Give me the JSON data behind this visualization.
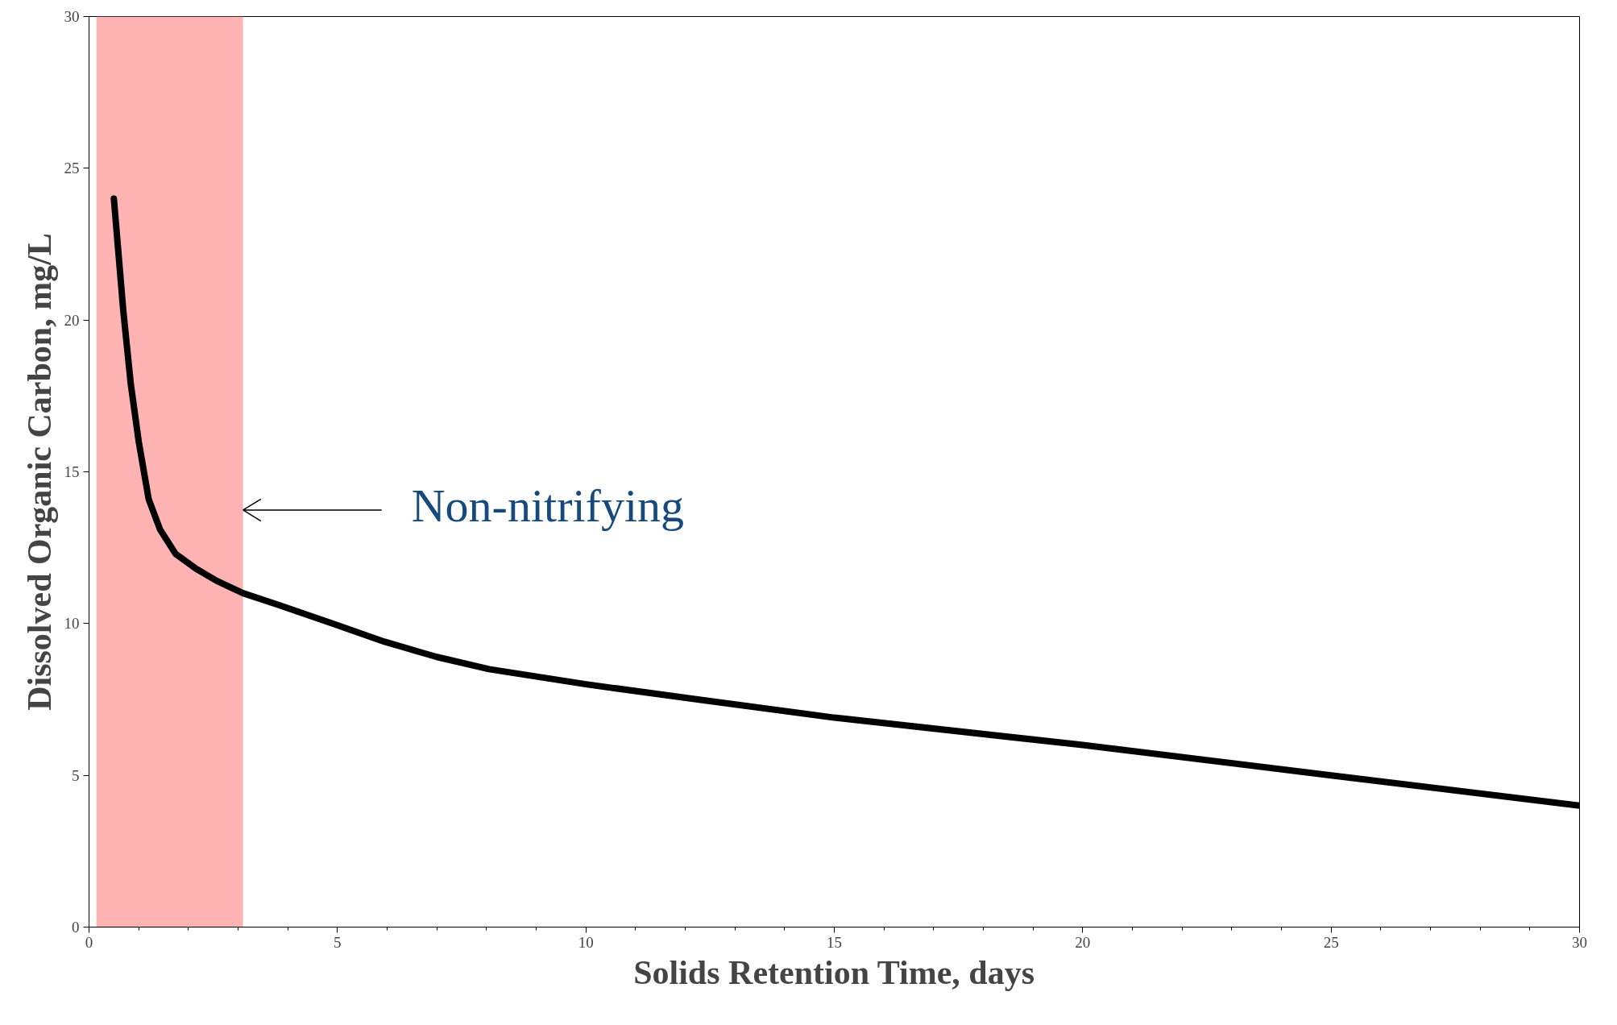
{
  "chart_data": {
    "type": "line",
    "xlabel": "Solids Retention Time, days",
    "ylabel": "Dissolved Organic Carbon, mg/L",
    "x": [
      0.5,
      0.69,
      0.84,
      1.0,
      1.2,
      1.43,
      1.74,
      2.16,
      2.58,
      3.1,
      3.84,
      4.9,
      5.95,
      7.0,
      8.05,
      10,
      12.25,
      15,
      20,
      25,
      30
    ],
    "series": [
      {
        "color": "#000000",
        "values": [
          24,
          20.3,
          17.9,
          16.0,
          14.1,
          13.1,
          12.3,
          11.8,
          11.4,
          11.0,
          10.6,
          10.0,
          9.4,
          8.9,
          8.5,
          8.0,
          7.5,
          6.9,
          6.0,
          5.0,
          4.0
        ]
      }
    ],
    "xlim": [
      0,
      30
    ],
    "ylim": [
      0,
      30
    ],
    "xticks": [
      0,
      5,
      10,
      15,
      20,
      25,
      30
    ],
    "yticks": [
      0,
      5,
      10,
      15,
      20,
      25,
      30
    ],
    "grid": false,
    "marker": "none",
    "line_style": "solid",
    "bands": [
      {
        "axis": "x",
        "from": 0.15,
        "to": 3.1,
        "color": "#ffb3b3"
      }
    ],
    "annotations": [
      "Non-nitrifying"
    ]
  }
}
